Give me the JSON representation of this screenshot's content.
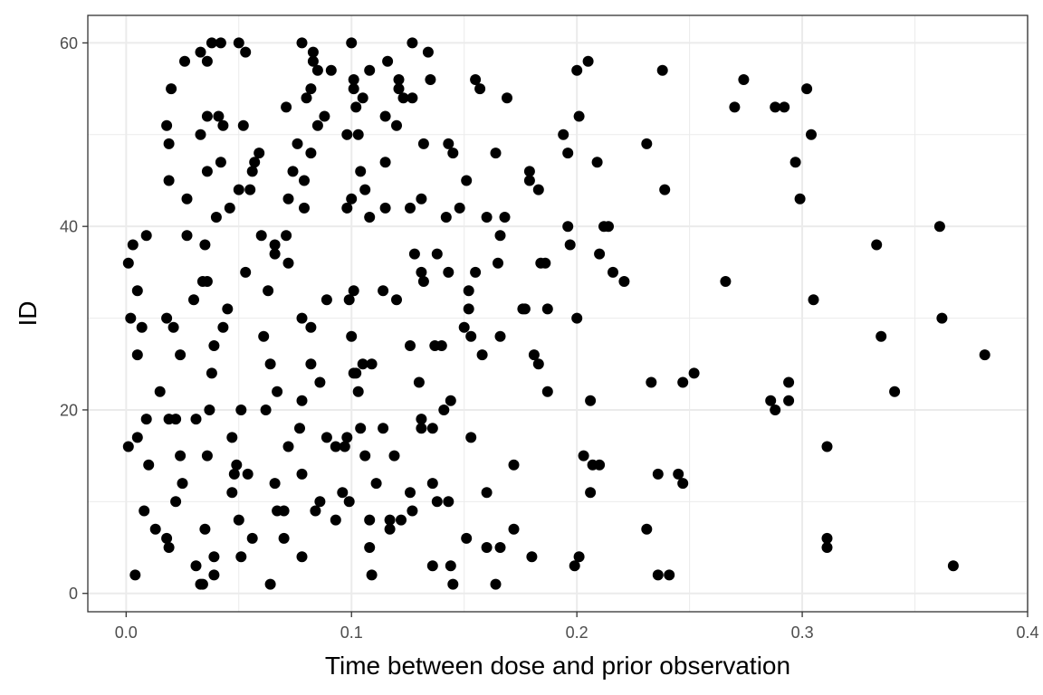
{
  "chart_data": {
    "type": "scatter",
    "title": "",
    "xlabel": "Time between dose and prior observation",
    "ylabel": "ID",
    "xlim": [
      -0.017,
      0.4
    ],
    "ylim": [
      -2,
      63
    ],
    "x_ticks": [
      0.0,
      0.1,
      0.2,
      0.3,
      0.4
    ],
    "x_tick_labels": [
      "0.0",
      "0.1",
      "0.2",
      "0.3",
      "0.4"
    ],
    "y_ticks": [
      0,
      20,
      40,
      60
    ],
    "y_tick_labels": [
      "0",
      "20",
      "40",
      "60"
    ],
    "grid": true,
    "legend": "none",
    "point_color": "#000000",
    "points": [
      [
        0.038,
        60
      ],
      [
        0.042,
        60
      ],
      [
        0.05,
        60
      ],
      [
        0.078,
        60
      ],
      [
        0.1,
        60
      ],
      [
        0.127,
        60
      ],
      [
        0.033,
        59
      ],
      [
        0.053,
        59
      ],
      [
        0.083,
        59
      ],
      [
        0.134,
        59
      ],
      [
        0.026,
        58
      ],
      [
        0.036,
        58
      ],
      [
        0.083,
        58
      ],
      [
        0.116,
        58
      ],
      [
        0.205,
        58
      ],
      [
        0.085,
        57
      ],
      [
        0.091,
        57
      ],
      [
        0.108,
        57
      ],
      [
        0.2,
        57
      ],
      [
        0.238,
        57
      ],
      [
        0.101,
        56
      ],
      [
        0.121,
        56
      ],
      [
        0.135,
        56
      ],
      [
        0.155,
        56
      ],
      [
        0.274,
        56
      ],
      [
        0.02,
        55
      ],
      [
        0.082,
        55
      ],
      [
        0.101,
        55
      ],
      [
        0.121,
        55
      ],
      [
        0.157,
        55
      ],
      [
        0.302,
        55
      ],
      [
        0.08,
        54
      ],
      [
        0.105,
        54
      ],
      [
        0.123,
        54
      ],
      [
        0.127,
        54
      ],
      [
        0.169,
        54
      ],
      [
        0.071,
        53
      ],
      [
        0.102,
        53
      ],
      [
        0.27,
        53
      ],
      [
        0.288,
        53
      ],
      [
        0.292,
        53
      ],
      [
        0.036,
        52
      ],
      [
        0.041,
        52
      ],
      [
        0.088,
        52
      ],
      [
        0.115,
        52
      ],
      [
        0.201,
        52
      ],
      [
        0.018,
        51
      ],
      [
        0.043,
        51
      ],
      [
        0.052,
        51
      ],
      [
        0.085,
        51
      ],
      [
        0.12,
        51
      ],
      [
        0.033,
        50
      ],
      [
        0.098,
        50
      ],
      [
        0.103,
        50
      ],
      [
        0.194,
        50
      ],
      [
        0.304,
        50
      ],
      [
        0.019,
        49
      ],
      [
        0.076,
        49
      ],
      [
        0.132,
        49
      ],
      [
        0.143,
        49
      ],
      [
        0.231,
        49
      ],
      [
        0.059,
        48
      ],
      [
        0.082,
        48
      ],
      [
        0.145,
        48
      ],
      [
        0.164,
        48
      ],
      [
        0.196,
        48
      ],
      [
        0.042,
        47
      ],
      [
        0.057,
        47
      ],
      [
        0.115,
        47
      ],
      [
        0.209,
        47
      ],
      [
        0.297,
        47
      ],
      [
        0.036,
        46
      ],
      [
        0.056,
        46
      ],
      [
        0.074,
        46
      ],
      [
        0.104,
        46
      ],
      [
        0.179,
        46
      ],
      [
        0.019,
        45
      ],
      [
        0.079,
        45
      ],
      [
        0.151,
        45
      ],
      [
        0.179,
        45
      ],
      [
        0.05,
        44
      ],
      [
        0.055,
        44
      ],
      [
        0.106,
        44
      ],
      [
        0.183,
        44
      ],
      [
        0.239,
        44
      ],
      [
        0.027,
        43
      ],
      [
        0.072,
        43
      ],
      [
        0.1,
        43
      ],
      [
        0.131,
        43
      ],
      [
        0.299,
        43
      ],
      [
        0.046,
        42
      ],
      [
        0.079,
        42
      ],
      [
        0.098,
        42
      ],
      [
        0.115,
        42
      ],
      [
        0.126,
        42
      ],
      [
        0.148,
        42
      ],
      [
        0.04,
        41
      ],
      [
        0.108,
        41
      ],
      [
        0.142,
        41
      ],
      [
        0.16,
        41
      ],
      [
        0.168,
        41
      ],
      [
        0.196,
        40
      ],
      [
        0.212,
        40
      ],
      [
        0.214,
        40
      ],
      [
        0.361,
        40
      ],
      [
        0.009,
        39
      ],
      [
        0.027,
        39
      ],
      [
        0.06,
        39
      ],
      [
        0.071,
        39
      ],
      [
        0.166,
        39
      ],
      [
        0.003,
        38
      ],
      [
        0.035,
        38
      ],
      [
        0.066,
        38
      ],
      [
        0.197,
        38
      ],
      [
        0.333,
        38
      ],
      [
        0.066,
        37
      ],
      [
        0.128,
        37
      ],
      [
        0.138,
        37
      ],
      [
        0.21,
        37
      ],
      [
        0.001,
        36
      ],
      [
        0.072,
        36
      ],
      [
        0.165,
        36
      ],
      [
        0.184,
        36
      ],
      [
        0.186,
        36
      ],
      [
        0.053,
        35
      ],
      [
        0.131,
        35
      ],
      [
        0.143,
        35
      ],
      [
        0.155,
        35
      ],
      [
        0.216,
        35
      ],
      [
        0.034,
        34
      ],
      [
        0.036,
        34
      ],
      [
        0.132,
        34
      ],
      [
        0.221,
        34
      ],
      [
        0.266,
        34
      ],
      [
        0.005,
        33
      ],
      [
        0.063,
        33
      ],
      [
        0.101,
        33
      ],
      [
        0.114,
        33
      ],
      [
        0.152,
        33
      ],
      [
        0.03,
        32
      ],
      [
        0.089,
        32
      ],
      [
        0.099,
        32
      ],
      [
        0.12,
        32
      ],
      [
        0.305,
        32
      ],
      [
        0.045,
        31
      ],
      [
        0.152,
        31
      ],
      [
        0.176,
        31
      ],
      [
        0.177,
        31
      ],
      [
        0.187,
        31
      ],
      [
        0.002,
        30
      ],
      [
        0.018,
        30
      ],
      [
        0.078,
        30
      ],
      [
        0.2,
        30
      ],
      [
        0.362,
        30
      ],
      [
        0.007,
        29
      ],
      [
        0.021,
        29
      ],
      [
        0.043,
        29
      ],
      [
        0.082,
        29
      ],
      [
        0.15,
        29
      ],
      [
        0.061,
        28
      ],
      [
        0.1,
        28
      ],
      [
        0.153,
        28
      ],
      [
        0.166,
        28
      ],
      [
        0.335,
        28
      ],
      [
        0.039,
        27
      ],
      [
        0.126,
        27
      ],
      [
        0.137,
        27
      ],
      [
        0.14,
        27
      ],
      [
        0.005,
        26
      ],
      [
        0.024,
        26
      ],
      [
        0.158,
        26
      ],
      [
        0.181,
        26
      ],
      [
        0.381,
        26
      ],
      [
        0.064,
        25
      ],
      [
        0.082,
        25
      ],
      [
        0.105,
        25
      ],
      [
        0.109,
        25
      ],
      [
        0.183,
        25
      ],
      [
        0.038,
        24
      ],
      [
        0.101,
        24
      ],
      [
        0.102,
        24
      ],
      [
        0.252,
        24
      ],
      [
        0.086,
        23
      ],
      [
        0.13,
        23
      ],
      [
        0.233,
        23
      ],
      [
        0.247,
        23
      ],
      [
        0.294,
        23
      ],
      [
        0.015,
        22
      ],
      [
        0.067,
        22
      ],
      [
        0.103,
        22
      ],
      [
        0.187,
        22
      ],
      [
        0.341,
        22
      ],
      [
        0.078,
        21
      ],
      [
        0.144,
        21
      ],
      [
        0.206,
        21
      ],
      [
        0.286,
        21
      ],
      [
        0.294,
        21
      ],
      [
        0.037,
        20
      ],
      [
        0.051,
        20
      ],
      [
        0.062,
        20
      ],
      [
        0.141,
        20
      ],
      [
        0.288,
        20
      ],
      [
        0.009,
        19
      ],
      [
        0.019,
        19
      ],
      [
        0.022,
        19
      ],
      [
        0.031,
        19
      ],
      [
        0.131,
        19
      ],
      [
        0.077,
        18
      ],
      [
        0.104,
        18
      ],
      [
        0.114,
        18
      ],
      [
        0.131,
        18
      ],
      [
        0.136,
        18
      ],
      [
        0.005,
        17
      ],
      [
        0.047,
        17
      ],
      [
        0.089,
        17
      ],
      [
        0.098,
        17
      ],
      [
        0.153,
        17
      ],
      [
        0.001,
        16
      ],
      [
        0.072,
        16
      ],
      [
        0.093,
        16
      ],
      [
        0.097,
        16
      ],
      [
        0.311,
        16
      ],
      [
        0.024,
        15
      ],
      [
        0.036,
        15
      ],
      [
        0.106,
        15
      ],
      [
        0.119,
        15
      ],
      [
        0.203,
        15
      ],
      [
        0.01,
        14
      ],
      [
        0.049,
        14
      ],
      [
        0.172,
        14
      ],
      [
        0.207,
        14
      ],
      [
        0.21,
        14
      ],
      [
        0.048,
        13
      ],
      [
        0.054,
        13
      ],
      [
        0.078,
        13
      ],
      [
        0.236,
        13
      ],
      [
        0.245,
        13
      ],
      [
        0.025,
        12
      ],
      [
        0.066,
        12
      ],
      [
        0.111,
        12
      ],
      [
        0.136,
        12
      ],
      [
        0.247,
        12
      ],
      [
        0.047,
        11
      ],
      [
        0.096,
        11
      ],
      [
        0.126,
        11
      ],
      [
        0.16,
        11
      ],
      [
        0.206,
        11
      ],
      [
        0.022,
        10
      ],
      [
        0.086,
        10
      ],
      [
        0.099,
        10
      ],
      [
        0.138,
        10
      ],
      [
        0.143,
        10
      ],
      [
        0.008,
        9
      ],
      [
        0.067,
        9
      ],
      [
        0.07,
        9
      ],
      [
        0.084,
        9
      ],
      [
        0.127,
        9
      ],
      [
        0.05,
        8
      ],
      [
        0.093,
        8
      ],
      [
        0.108,
        8
      ],
      [
        0.117,
        8
      ],
      [
        0.122,
        8
      ],
      [
        0.013,
        7
      ],
      [
        0.035,
        7
      ],
      [
        0.117,
        7
      ],
      [
        0.172,
        7
      ],
      [
        0.231,
        7
      ],
      [
        0.018,
        6
      ],
      [
        0.056,
        6
      ],
      [
        0.07,
        6
      ],
      [
        0.151,
        6
      ],
      [
        0.311,
        6
      ],
      [
        0.019,
        5
      ],
      [
        0.108,
        5
      ],
      [
        0.16,
        5
      ],
      [
        0.166,
        5
      ],
      [
        0.311,
        5
      ],
      [
        0.039,
        4
      ],
      [
        0.051,
        4
      ],
      [
        0.078,
        4
      ],
      [
        0.18,
        4
      ],
      [
        0.201,
        4
      ],
      [
        0.031,
        3
      ],
      [
        0.136,
        3
      ],
      [
        0.144,
        3
      ],
      [
        0.199,
        3
      ],
      [
        0.367,
        3
      ],
      [
        0.004,
        2
      ],
      [
        0.039,
        2
      ],
      [
        0.109,
        2
      ],
      [
        0.236,
        2
      ],
      [
        0.241,
        2
      ],
      [
        0.033,
        1
      ],
      [
        0.034,
        1
      ],
      [
        0.064,
        1
      ],
      [
        0.145,
        1
      ],
      [
        0.164,
        1
      ]
    ]
  }
}
